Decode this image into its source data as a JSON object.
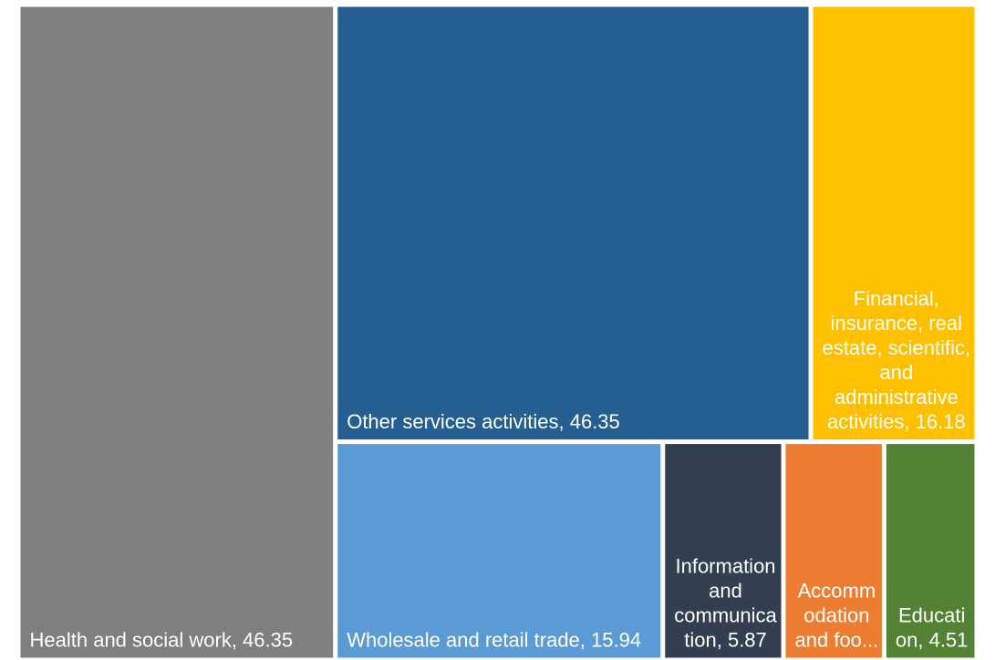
{
  "chart_data": {
    "type": "treemap",
    "items": [
      {
        "label": "Health and social work, 46.35",
        "value": 46.35,
        "color": "#7f7f7f"
      },
      {
        "label": "Other services activities, 46.35",
        "value": 46.35,
        "color": "#255e91"
      },
      {
        "label": "Financial, insurance, real estate, scientific, and administrative activities, 16.18",
        "value": 16.18,
        "color": "#ffc000"
      },
      {
        "label": "Wholesale and retail trade, 15.94",
        "value": 15.94,
        "color": "#5b9bd5"
      },
      {
        "label": "Information and communication, 5.87",
        "value": 5.87,
        "color": "#333f50"
      },
      {
        "label": "Accommodation and foo...",
        "value": 4.9,
        "color": "#ed7d31"
      },
      {
        "label": "Education, 4.51",
        "value": 4.51,
        "color": "#548235"
      }
    ]
  }
}
